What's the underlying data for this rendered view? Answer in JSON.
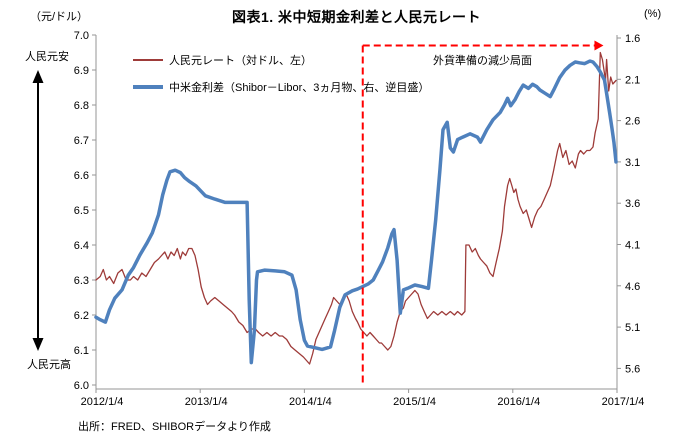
{
  "header": {
    "title": "図表1. 米中短期金利差と人民元レート"
  },
  "footer": {
    "source": "出所：FRED、SHIBORデータより作成"
  },
  "left_axis": {
    "unit": "（元/ドル）",
    "label_weak": "人民元安",
    "label_strong": "人民元高",
    "min": 6.0,
    "max": 7.0,
    "ticks": [
      "7.0",
      "6.9",
      "6.8",
      "6.7",
      "6.6",
      "6.5",
      "6.4",
      "6.3",
      "6.2",
      "6.1",
      "6.0"
    ]
  },
  "right_axis": {
    "unit": "(%)",
    "inverted": true,
    "ticks": [
      "1.6",
      "2.1",
      "2.6",
      "3.1",
      "3.6",
      "4.1",
      "4.6",
      "5.1",
      "5.6"
    ]
  },
  "x_axis": {
    "ticks": [
      "2012/1/4",
      "2013/1/4",
      "2014/1/4",
      "2015/1/4",
      "2016/1/4",
      "2017/1/4"
    ]
  },
  "legend": [
    {
      "label": "人民元レート（対ドル、左）",
      "color": "#9e3b39",
      "thickness": 2
    },
    {
      "label": "中米金利差（Shibor－Libor、3ヵ月物、右、逆目盛）",
      "color": "#4f81bd",
      "thickness": 4
    }
  ],
  "annotation": {
    "text": "外貨準備の減少局面",
    "line_color": "#ff0000",
    "vline_t": 2.56,
    "hline_left_value": 6.97,
    "arrow_end_t": 4.87
  },
  "chart_data": {
    "type": "line",
    "title": "図表1. 米中短期金利差と人民元レート",
    "x_note": "t = years after 2012/1/4, daily series",
    "left_ylim": [
      6.0,
      7.0
    ],
    "right_ylim_top_to_bottom": [
      1.6,
      5.85
    ],
    "grid": false,
    "legend_position": "top-left-inside",
    "series": [
      {
        "name": "人民元レート（対ドル、左）",
        "axis": "left",
        "color": "#9e3b39",
        "width": 1.3,
        "points": [
          [
            0,
            6.3
          ],
          [
            0.04,
            6.31
          ],
          [
            0.07,
            6.33
          ],
          [
            0.1,
            6.3
          ],
          [
            0.13,
            6.31
          ],
          [
            0.17,
            6.29
          ],
          [
            0.21,
            6.32
          ],
          [
            0.25,
            6.33
          ],
          [
            0.29,
            6.3
          ],
          [
            0.33,
            6.3
          ],
          [
            0.36,
            6.31
          ],
          [
            0.4,
            6.3
          ],
          [
            0.44,
            6.32
          ],
          [
            0.48,
            6.31
          ],
          [
            0.52,
            6.33
          ],
          [
            0.56,
            6.35
          ],
          [
            0.6,
            6.36
          ],
          [
            0.63,
            6.37
          ],
          [
            0.66,
            6.38
          ],
          [
            0.69,
            6.36
          ],
          [
            0.72,
            6.38
          ],
          [
            0.75,
            6.37
          ],
          [
            0.78,
            6.39
          ],
          [
            0.81,
            6.36
          ],
          [
            0.83,
            6.38
          ],
          [
            0.86,
            6.37
          ],
          [
            0.89,
            6.39
          ],
          [
            0.92,
            6.39
          ],
          [
            0.95,
            6.37
          ],
          [
            0.98,
            6.33
          ],
          [
            1.01,
            6.28
          ],
          [
            1.04,
            6.25
          ],
          [
            1.07,
            6.23
          ],
          [
            1.1,
            6.24
          ],
          [
            1.14,
            6.25
          ],
          [
            1.18,
            6.24
          ],
          [
            1.22,
            6.23
          ],
          [
            1.26,
            6.22
          ],
          [
            1.3,
            6.21
          ],
          [
            1.33,
            6.2
          ],
          [
            1.37,
            6.18
          ],
          [
            1.41,
            6.17
          ],
          [
            1.45,
            6.15
          ],
          [
            1.49,
            6.16
          ],
          [
            1.53,
            6.16
          ],
          [
            1.56,
            6.15
          ],
          [
            1.6,
            6.14
          ],
          [
            1.64,
            6.15
          ],
          [
            1.68,
            6.14
          ],
          [
            1.72,
            6.15
          ],
          [
            1.76,
            6.14
          ],
          [
            1.79,
            6.14
          ],
          [
            1.83,
            6.13
          ],
          [
            1.87,
            6.11
          ],
          [
            1.91,
            6.1
          ],
          [
            1.95,
            6.09
          ],
          [
            1.99,
            6.08
          ],
          [
            2.02,
            6.07
          ],
          [
            2.05,
            6.06
          ],
          [
            2.08,
            6.09
          ],
          [
            2.11,
            6.13
          ],
          [
            2.14,
            6.15
          ],
          [
            2.17,
            6.17
          ],
          [
            2.2,
            6.19
          ],
          [
            2.23,
            6.21
          ],
          [
            2.26,
            6.23
          ],
          [
            2.28,
            6.25
          ],
          [
            2.31,
            6.24
          ],
          [
            2.34,
            6.23
          ],
          [
            2.37,
            6.25
          ],
          [
            2.4,
            6.26
          ],
          [
            2.43,
            6.24
          ],
          [
            2.46,
            6.21
          ],
          [
            2.49,
            6.19
          ],
          [
            2.51,
            6.18
          ],
          [
            2.54,
            6.16
          ],
          [
            2.57,
            6.15
          ],
          [
            2.6,
            6.14
          ],
          [
            2.63,
            6.15
          ],
          [
            2.66,
            6.14
          ],
          [
            2.69,
            6.13
          ],
          [
            2.72,
            6.12
          ],
          [
            2.74,
            6.12
          ],
          [
            2.77,
            6.11
          ],
          [
            2.8,
            6.1
          ],
          [
            2.83,
            6.11
          ],
          [
            2.86,
            6.14
          ],
          [
            2.89,
            6.18
          ],
          [
            2.92,
            6.21
          ],
          [
            2.95,
            6.22
          ],
          [
            2.97,
            6.24
          ],
          [
            3.0,
            6.25
          ],
          [
            3.03,
            6.26
          ],
          [
            3.06,
            6.27
          ],
          [
            3.09,
            6.26
          ],
          [
            3.12,
            6.23
          ],
          [
            3.15,
            6.21
          ],
          [
            3.18,
            6.19
          ],
          [
            3.21,
            6.2
          ],
          [
            3.24,
            6.21
          ],
          [
            3.28,
            6.2
          ],
          [
            3.32,
            6.21
          ],
          [
            3.36,
            6.2
          ],
          [
            3.4,
            6.21
          ],
          [
            3.44,
            6.2
          ],
          [
            3.47,
            6.21
          ],
          [
            3.51,
            6.2
          ],
          [
            3.54,
            6.21
          ],
          [
            3.55,
            6.4
          ],
          [
            3.58,
            6.4
          ],
          [
            3.61,
            6.38
          ],
          [
            3.64,
            6.39
          ],
          [
            3.67,
            6.37
          ],
          [
            3.69,
            6.36
          ],
          [
            3.72,
            6.35
          ],
          [
            3.75,
            6.34
          ],
          [
            3.78,
            6.32
          ],
          [
            3.81,
            6.31
          ],
          [
            3.84,
            6.35
          ],
          [
            3.87,
            6.39
          ],
          [
            3.9,
            6.44
          ],
          [
            3.92,
            6.51
          ],
          [
            3.95,
            6.57
          ],
          [
            3.97,
            6.59
          ],
          [
            3.99,
            6.57
          ],
          [
            4.01,
            6.55
          ],
          [
            4.03,
            6.56
          ],
          [
            4.05,
            6.53
          ],
          [
            4.07,
            6.51
          ],
          [
            4.1,
            6.49
          ],
          [
            4.13,
            6.5
          ],
          [
            4.16,
            6.47
          ],
          [
            4.18,
            6.45
          ],
          [
            4.21,
            6.48
          ],
          [
            4.24,
            6.5
          ],
          [
            4.27,
            6.51
          ],
          [
            4.3,
            6.53
          ],
          [
            4.33,
            6.55
          ],
          [
            4.36,
            6.57
          ],
          [
            4.39,
            6.61
          ],
          [
            4.41,
            6.64
          ],
          [
            4.43,
            6.67
          ],
          [
            4.45,
            6.69
          ],
          [
            4.48,
            6.65
          ],
          [
            4.51,
            6.67
          ],
          [
            4.54,
            6.63
          ],
          [
            4.57,
            6.64
          ],
          [
            4.6,
            6.62
          ],
          [
            4.63,
            6.66
          ],
          [
            4.65,
            6.67
          ],
          [
            4.68,
            6.66
          ],
          [
            4.71,
            6.67
          ],
          [
            4.74,
            6.67
          ],
          [
            4.77,
            6.68
          ],
          [
            4.79,
            6.72
          ],
          [
            4.82,
            6.76
          ],
          [
            4.84,
            6.95
          ],
          [
            4.86,
            6.93
          ],
          [
            4.88,
            6.89
          ],
          [
            4.89,
            6.87
          ],
          [
            4.9,
            6.93
          ],
          [
            4.92,
            6.84
          ],
          [
            4.94,
            6.88
          ],
          [
            4.96,
            6.86
          ],
          [
            4.99,
            6.87
          ]
        ]
      },
      {
        "name": "中米金利差（Shibor－Libor、3ヵ月物、右、逆目盛）",
        "axis": "right",
        "color": "#4f81bd",
        "width": 3.5,
        "points": [
          [
            0,
            4.98
          ],
          [
            0.04,
            5.01
          ],
          [
            0.09,
            5.04
          ],
          [
            0.13,
            4.89
          ],
          [
            0.18,
            4.75
          ],
          [
            0.25,
            4.65
          ],
          [
            0.31,
            4.47
          ],
          [
            0.36,
            4.38
          ],
          [
            0.42,
            4.23
          ],
          [
            0.49,
            4.08
          ],
          [
            0.54,
            3.96
          ],
          [
            0.6,
            3.74
          ],
          [
            0.64,
            3.5
          ],
          [
            0.68,
            3.32
          ],
          [
            0.71,
            3.22
          ],
          [
            0.76,
            3.2
          ],
          [
            0.81,
            3.23
          ],
          [
            0.85,
            3.29
          ],
          [
            0.9,
            3.34
          ],
          [
            0.96,
            3.39
          ],
          [
            1.05,
            3.51
          ],
          [
            1.14,
            3.55
          ],
          [
            1.24,
            3.59
          ],
          [
            1.45,
            3.59
          ],
          [
            1.47,
            4.77
          ],
          [
            1.49,
            5.53
          ],
          [
            1.52,
            5.14
          ],
          [
            1.54,
            4.53
          ],
          [
            1.55,
            4.43
          ],
          [
            1.62,
            4.41
          ],
          [
            1.72,
            4.42
          ],
          [
            1.81,
            4.43
          ],
          [
            1.88,
            4.47
          ],
          [
            1.92,
            4.65
          ],
          [
            1.96,
            5.01
          ],
          [
            2.0,
            5.26
          ],
          [
            2.03,
            5.33
          ],
          [
            2.1,
            5.35
          ],
          [
            2.17,
            5.37
          ],
          [
            2.25,
            5.34
          ],
          [
            2.29,
            5.14
          ],
          [
            2.34,
            4.86
          ],
          [
            2.39,
            4.71
          ],
          [
            2.46,
            4.66
          ],
          [
            2.51,
            4.64
          ],
          [
            2.56,
            4.61
          ],
          [
            2.61,
            4.58
          ],
          [
            2.66,
            4.53
          ],
          [
            2.71,
            4.41
          ],
          [
            2.75,
            4.31
          ],
          [
            2.8,
            4.14
          ],
          [
            2.84,
            3.97
          ],
          [
            2.86,
            3.92
          ],
          [
            2.89,
            4.29
          ],
          [
            2.92,
            4.93
          ],
          [
            2.95,
            4.65
          ],
          [
            2.99,
            4.63
          ],
          [
            3.06,
            4.59
          ],
          [
            3.13,
            4.61
          ],
          [
            3.19,
            4.63
          ],
          [
            3.22,
            4.29
          ],
          [
            3.26,
            3.8
          ],
          [
            3.3,
            3.2
          ],
          [
            3.33,
            2.71
          ],
          [
            3.37,
            2.62
          ],
          [
            3.4,
            2.93
          ],
          [
            3.43,
            2.98
          ],
          [
            3.47,
            2.83
          ],
          [
            3.52,
            2.8
          ],
          [
            3.59,
            2.76
          ],
          [
            3.66,
            2.8
          ],
          [
            3.69,
            2.86
          ],
          [
            3.75,
            2.71
          ],
          [
            3.81,
            2.59
          ],
          [
            3.88,
            2.5
          ],
          [
            3.92,
            2.41
          ],
          [
            3.95,
            2.33
          ],
          [
            3.98,
            2.42
          ],
          [
            4.02,
            2.35
          ],
          [
            4.06,
            2.25
          ],
          [
            4.1,
            2.17
          ],
          [
            4.15,
            2.21
          ],
          [
            4.19,
            2.16
          ],
          [
            4.23,
            2.19
          ],
          [
            4.26,
            2.23
          ],
          [
            4.31,
            2.27
          ],
          [
            4.36,
            2.31
          ],
          [
            4.4,
            2.21
          ],
          [
            4.45,
            2.08
          ],
          [
            4.5,
            1.99
          ],
          [
            4.55,
            1.93
          ],
          [
            4.6,
            1.89
          ],
          [
            4.64,
            1.9
          ],
          [
            4.69,
            1.91
          ],
          [
            4.74,
            1.88
          ],
          [
            4.77,
            1.89
          ],
          [
            4.81,
            1.95
          ],
          [
            4.84,
            2.01
          ],
          [
            4.88,
            2.11
          ],
          [
            4.9,
            2.27
          ],
          [
            4.93,
            2.51
          ],
          [
            4.95,
            2.68
          ],
          [
            4.97,
            2.86
          ],
          [
            4.99,
            3.1
          ]
        ]
      }
    ]
  }
}
